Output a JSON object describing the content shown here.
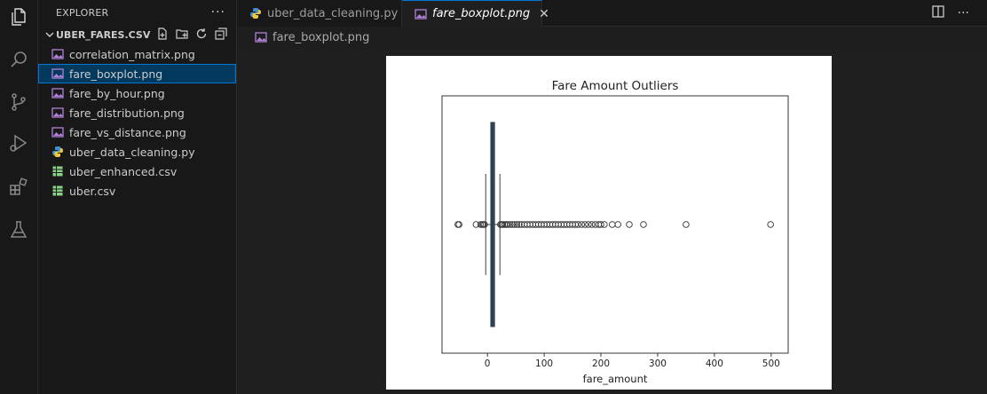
{
  "sidebar": {
    "header": "EXPLORER",
    "more": "···",
    "folder": "UBER_FARES.CSV",
    "files": [
      {
        "name": "correlation_matrix.png",
        "type": "image"
      },
      {
        "name": "fare_boxplot.png",
        "type": "image",
        "active": true
      },
      {
        "name": "fare_by_hour.png",
        "type": "image"
      },
      {
        "name": "fare_distribution.png",
        "type": "image"
      },
      {
        "name": "fare_vs_distance.png",
        "type": "image"
      },
      {
        "name": "uber_data_cleaning.py",
        "type": "python"
      },
      {
        "name": "uber_enhanced.csv",
        "type": "csv"
      },
      {
        "name": "uber.csv",
        "type": "csv"
      }
    ]
  },
  "tabs": [
    {
      "label": "uber_data_cleaning.py",
      "type": "python",
      "active": false
    },
    {
      "label": "fare_boxplot.png",
      "type": "image",
      "active": true
    }
  ],
  "breadcrumb": "fare_boxplot.png",
  "chart_data": {
    "type": "boxplot",
    "title": "Fare Amount Outliers",
    "xlabel": "fare_amount",
    "xlim": [
      -80,
      530
    ],
    "xticks": [
      0,
      100,
      200,
      300,
      400,
      500
    ],
    "box": {
      "q1": 6,
      "median": 8.5,
      "q3": 12.5,
      "whisker_low": -3,
      "whisker_high": 22
    },
    "outliers_high": [
      23,
      25,
      27,
      30,
      33,
      36,
      40,
      44,
      48,
      52,
      56,
      60,
      65,
      70,
      75,
      80,
      85,
      90,
      95,
      100,
      105,
      110,
      115,
      120,
      125,
      130,
      135,
      140,
      145,
      150,
      155,
      160,
      166,
      172,
      178,
      184,
      190,
      196,
      200,
      206,
      220,
      230,
      250,
      275,
      350,
      499
    ],
    "outliers_low": [
      -52,
      -50,
      -20,
      -12,
      -9,
      -7,
      -5
    ]
  },
  "colors": {
    "accent": "#0078d4",
    "box_fill": "#34495e"
  }
}
